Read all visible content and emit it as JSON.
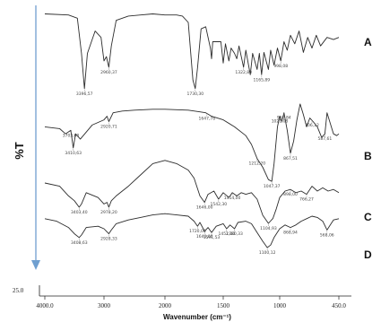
{
  "chart_data": {
    "type": "line",
    "xlabel": "Wavenumber (cm⁻¹)",
    "ylabel": "%T",
    "x_ticks": [
      "4000.0",
      "3000",
      "2000",
      "1500",
      "1000",
      "450.0"
    ],
    "y_axis_start_label": "25.0",
    "series_labels": [
      "A",
      "B",
      "C",
      "D"
    ],
    "colors": {
      "spectrum": "#2c2c2c",
      "arrow": "#6f9fd0",
      "axis": "#222222"
    },
    "series": [
      {
        "name": "A",
        "points": [
          [
            4000,
            0.92
          ],
          [
            3600,
            0.91
          ],
          [
            3450,
            0.88
          ],
          [
            3380,
            0.55
          ],
          [
            3330,
            0.22
          ],
          [
            3280,
            0.55
          ],
          [
            3150,
            0.76
          ],
          [
            3050,
            0.7
          ],
          [
            3000,
            0.48
          ],
          [
            2960,
            0.52
          ],
          [
            2920,
            0.42
          ],
          [
            2880,
            0.62
          ],
          [
            2800,
            0.86
          ],
          [
            2600,
            0.9
          ],
          [
            2400,
            0.91
          ],
          [
            2200,
            0.92
          ],
          [
            2000,
            0.91
          ],
          [
            1900,
            0.91
          ],
          [
            1850,
            0.9
          ],
          [
            1800,
            0.84
          ],
          [
            1760,
            0.3
          ],
          [
            1740,
            0.22
          ],
          [
            1720,
            0.42
          ],
          [
            1690,
            0.78
          ],
          [
            1650,
            0.8
          ],
          [
            1610,
            0.6
          ],
          [
            1600,
            0.5
          ],
          [
            1590,
            0.66
          ],
          [
            1520,
            0.66
          ],
          [
            1500,
            0.46
          ],
          [
            1480,
            0.64
          ],
          [
            1450,
            0.48
          ],
          [
            1430,
            0.6
          ],
          [
            1400,
            0.55
          ],
          [
            1380,
            0.5
          ],
          [
            1360,
            0.62
          ],
          [
            1320,
            0.42
          ],
          [
            1300,
            0.58
          ],
          [
            1260,
            0.35
          ],
          [
            1240,
            0.55
          ],
          [
            1200,
            0.4
          ],
          [
            1180,
            0.55
          ],
          [
            1160,
            0.35
          ],
          [
            1140,
            0.56
          ],
          [
            1100,
            0.4
          ],
          [
            1080,
            0.58
          ],
          [
            1050,
            0.44
          ],
          [
            1020,
            0.6
          ],
          [
            990,
            0.48
          ],
          [
            960,
            0.66
          ],
          [
            930,
            0.58
          ],
          [
            900,
            0.72
          ],
          [
            860,
            0.64
          ],
          [
            820,
            0.76
          ],
          [
            780,
            0.56
          ],
          [
            740,
            0.7
          ],
          [
            700,
            0.6
          ],
          [
            660,
            0.72
          ],
          [
            620,
            0.62
          ],
          [
            560,
            0.7
          ],
          [
            500,
            0.68
          ],
          [
            450,
            0.7
          ]
        ],
        "annotations": [
          {
            "x": 3330,
            "text": "3396,57"
          },
          {
            "x": 2920,
            "text": "2960,37"
          },
          {
            "x": 1740,
            "text": "1730,30"
          },
          {
            "x": 1320,
            "text": "1322,80"
          },
          {
            "x": 1160,
            "text": "1165,89"
          },
          {
            "x": 990,
            "text": "998,08"
          }
        ]
      },
      {
        "name": "B",
        "points": [
          [
            4000,
            0.7
          ],
          [
            3750,
            0.68
          ],
          [
            3650,
            0.62
          ],
          [
            3560,
            0.66
          ],
          [
            3520,
            0.46
          ],
          [
            3480,
            0.62
          ],
          [
            3400,
            0.56
          ],
          [
            3200,
            0.72
          ],
          [
            3000,
            0.78
          ],
          [
            2950,
            0.82
          ],
          [
            2920,
            0.76
          ],
          [
            2850,
            0.86
          ],
          [
            2700,
            0.88
          ],
          [
            2500,
            0.89
          ],
          [
            2200,
            0.9
          ],
          [
            2000,
            0.9
          ],
          [
            1800,
            0.89
          ],
          [
            1700,
            0.87
          ],
          [
            1650,
            0.86
          ],
          [
            1600,
            0.82
          ],
          [
            1500,
            0.78
          ],
          [
            1400,
            0.7
          ],
          [
            1300,
            0.6
          ],
          [
            1250,
            0.5
          ],
          [
            1200,
            0.34
          ],
          [
            1150,
            0.24
          ],
          [
            1100,
            0.1
          ],
          [
            1070,
            0.08
          ],
          [
            1050,
            0.28
          ],
          [
            1020,
            0.7
          ],
          [
            1000,
            0.82
          ],
          [
            980,
            0.76
          ],
          [
            960,
            0.86
          ],
          [
            930,
            0.66
          ],
          [
            900,
            0.4
          ],
          [
            870,
            0.54
          ],
          [
            840,
            0.78
          ],
          [
            810,
            0.96
          ],
          [
            780,
            0.84
          ],
          [
            750,
            0.7
          ],
          [
            720,
            0.8
          ],
          [
            690,
            0.76
          ],
          [
            650,
            0.7
          ],
          [
            610,
            0.58
          ],
          [
            580,
            0.62
          ],
          [
            560,
            0.86
          ],
          [
            530,
            0.74
          ],
          [
            500,
            0.62
          ],
          [
            470,
            0.6
          ],
          [
            450,
            0.62
          ]
        ],
        "annotations": [
          {
            "x": 3560,
            "text": "3703,00"
          },
          {
            "x": 3520,
            "text": "3410,63"
          },
          {
            "x": 2920,
            "text": "2920,71"
          },
          {
            "x": 1640,
            "text": "1647,78"
          },
          {
            "x": 1200,
            "text": "1212,20"
          },
          {
            "x": 1070,
            "text": "1047,37"
          },
          {
            "x": 1000,
            "text": "1021,08"
          },
          {
            "x": 960,
            "text": "960,84"
          },
          {
            "x": 900,
            "text": "867,51"
          },
          {
            "x": 700,
            "text": "706,12"
          },
          {
            "x": 580,
            "text": "587,61"
          }
        ]
      },
      {
        "name": "C",
        "points": [
          [
            4000,
            0.6
          ],
          [
            3750,
            0.56
          ],
          [
            3600,
            0.44
          ],
          [
            3500,
            0.38
          ],
          [
            3420,
            0.3
          ],
          [
            3380,
            0.34
          ],
          [
            3300,
            0.48
          ],
          [
            3100,
            0.42
          ],
          [
            3000,
            0.34
          ],
          [
            2950,
            0.36
          ],
          [
            2920,
            0.3
          ],
          [
            2880,
            0.38
          ],
          [
            2800,
            0.44
          ],
          [
            2600,
            0.56
          ],
          [
            2400,
            0.7
          ],
          [
            2200,
            0.84
          ],
          [
            2000,
            0.88
          ],
          [
            1900,
            0.84
          ],
          [
            1800,
            0.76
          ],
          [
            1750,
            0.66
          ],
          [
            1700,
            0.44
          ],
          [
            1660,
            0.36
          ],
          [
            1630,
            0.46
          ],
          [
            1580,
            0.5
          ],
          [
            1540,
            0.4
          ],
          [
            1500,
            0.48
          ],
          [
            1450,
            0.42
          ],
          [
            1420,
            0.48
          ],
          [
            1380,
            0.44
          ],
          [
            1340,
            0.48
          ],
          [
            1300,
            0.46
          ],
          [
            1250,
            0.48
          ],
          [
            1200,
            0.4
          ],
          [
            1150,
            0.2
          ],
          [
            1100,
            0.1
          ],
          [
            1060,
            0.16
          ],
          [
            1030,
            0.28
          ],
          [
            1000,
            0.42
          ],
          [
            950,
            0.5
          ],
          [
            900,
            0.52
          ],
          [
            850,
            0.48
          ],
          [
            800,
            0.5
          ],
          [
            750,
            0.46
          ],
          [
            700,
            0.56
          ],
          [
            650,
            0.5
          ],
          [
            600,
            0.54
          ],
          [
            550,
            0.5
          ],
          [
            500,
            0.52
          ],
          [
            450,
            0.48
          ]
        ],
        "annotations": [
          {
            "x": 3420,
            "text": "3403,40"
          },
          {
            "x": 2920,
            "text": "2978,20"
          },
          {
            "x": 1660,
            "text": "1646,00"
          },
          {
            "x": 1540,
            "text": "1542,30"
          },
          {
            "x": 1420,
            "text": "1454,00"
          },
          {
            "x": 1100,
            "text": "1104,93"
          },
          {
            "x": 900,
            "text": "898,00"
          },
          {
            "x": 750,
            "text": "766,27"
          }
        ]
      },
      {
        "name": "D",
        "points": [
          [
            4000,
            0.66
          ],
          [
            3800,
            0.62
          ],
          [
            3600,
            0.52
          ],
          [
            3500,
            0.42
          ],
          [
            3420,
            0.36
          ],
          [
            3380,
            0.4
          ],
          [
            3300,
            0.52
          ],
          [
            3100,
            0.54
          ],
          [
            3000,
            0.5
          ],
          [
            2960,
            0.46
          ],
          [
            2920,
            0.42
          ],
          [
            2880,
            0.48
          ],
          [
            2800,
            0.58
          ],
          [
            2600,
            0.64
          ],
          [
            2400,
            0.68
          ],
          [
            2200,
            0.72
          ],
          [
            2000,
            0.74
          ],
          [
            1900,
            0.72
          ],
          [
            1800,
            0.7
          ],
          [
            1750,
            0.62
          ],
          [
            1720,
            0.54
          ],
          [
            1700,
            0.6
          ],
          [
            1660,
            0.46
          ],
          [
            1630,
            0.52
          ],
          [
            1600,
            0.44
          ],
          [
            1560,
            0.54
          ],
          [
            1500,
            0.58
          ],
          [
            1470,
            0.5
          ],
          [
            1440,
            0.56
          ],
          [
            1400,
            0.5
          ],
          [
            1370,
            0.6
          ],
          [
            1300,
            0.62
          ],
          [
            1250,
            0.58
          ],
          [
            1200,
            0.44
          ],
          [
            1150,
            0.3
          ],
          [
            1110,
            0.2
          ],
          [
            1080,
            0.24
          ],
          [
            1050,
            0.36
          ],
          [
            1000,
            0.5
          ],
          [
            950,
            0.56
          ],
          [
            900,
            0.52
          ],
          [
            850,
            0.56
          ],
          [
            800,
            0.62
          ],
          [
            750,
            0.66
          ],
          [
            700,
            0.7
          ],
          [
            650,
            0.68
          ],
          [
            600,
            0.62
          ],
          [
            560,
            0.48
          ],
          [
            530,
            0.56
          ],
          [
            500,
            0.64
          ],
          [
            450,
            0.66
          ]
        ],
        "annotations": [
          {
            "x": 3420,
            "text": "3408,63"
          },
          {
            "x": 2920,
            "text": "2928,33"
          },
          {
            "x": 1720,
            "text": "1720,00"
          },
          {
            "x": 1660,
            "text": "1640,00"
          },
          {
            "x": 1600,
            "text": "1591,53"
          },
          {
            "x": 1470,
            "text": "1452,00"
          },
          {
            "x": 1400,
            "text": "1380,33"
          },
          {
            "x": 1110,
            "text": "1100,12"
          },
          {
            "x": 900,
            "text": "868,94"
          },
          {
            "x": 560,
            "text": "568,06"
          }
        ]
      }
    ]
  }
}
